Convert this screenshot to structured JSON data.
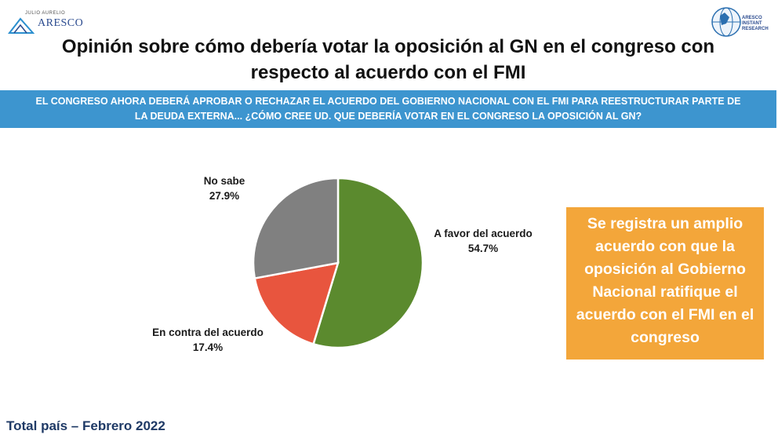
{
  "header": {
    "logo_left_tagline": "JULIO AURELIO",
    "logo_left_name": "ARESCO",
    "logo_right_name": "ARESCO INSTANT RESEARCH",
    "title": "Opinión sobre cómo debería votar la oposición al GN en el congreso con respecto al acuerdo con el FMI"
  },
  "question_line1": "EL CONGRESO AHORA DEBERÁ APROBAR O RECHAZAR EL ACUERDO DEL GOBIERNO NACIONAL CON EL FMI PARA REESTRUCTURAR PARTE DE",
  "question_line2": "LA DEUDA EXTERNA... ¿CÓMO CREE UD. QUE DEBERÍA VOTAR EN EL CONGRESO LA OPOSICIÓN AL GN?",
  "callout": "Se registra un amplio acuerdo con que la oposición al Gobierno Nacional ratifique el acuerdo con el FMI en el congreso",
  "footer": "Total país – Febrero 2022",
  "chart_data": {
    "type": "pie",
    "slices": [
      {
        "label": "A favor del acuerdo",
        "value": 54.7,
        "display": "54.7%",
        "color": "#5b8a2e"
      },
      {
        "label": "En contra del acuerdo",
        "value": 17.4,
        "display": "17.4%",
        "color": "#e8553e"
      },
      {
        "label": "No sabe",
        "value": 27.9,
        "display": "27.9%",
        "color": "#808080"
      }
    ],
    "start_angle_deg": 0,
    "direction": "clockwise"
  }
}
